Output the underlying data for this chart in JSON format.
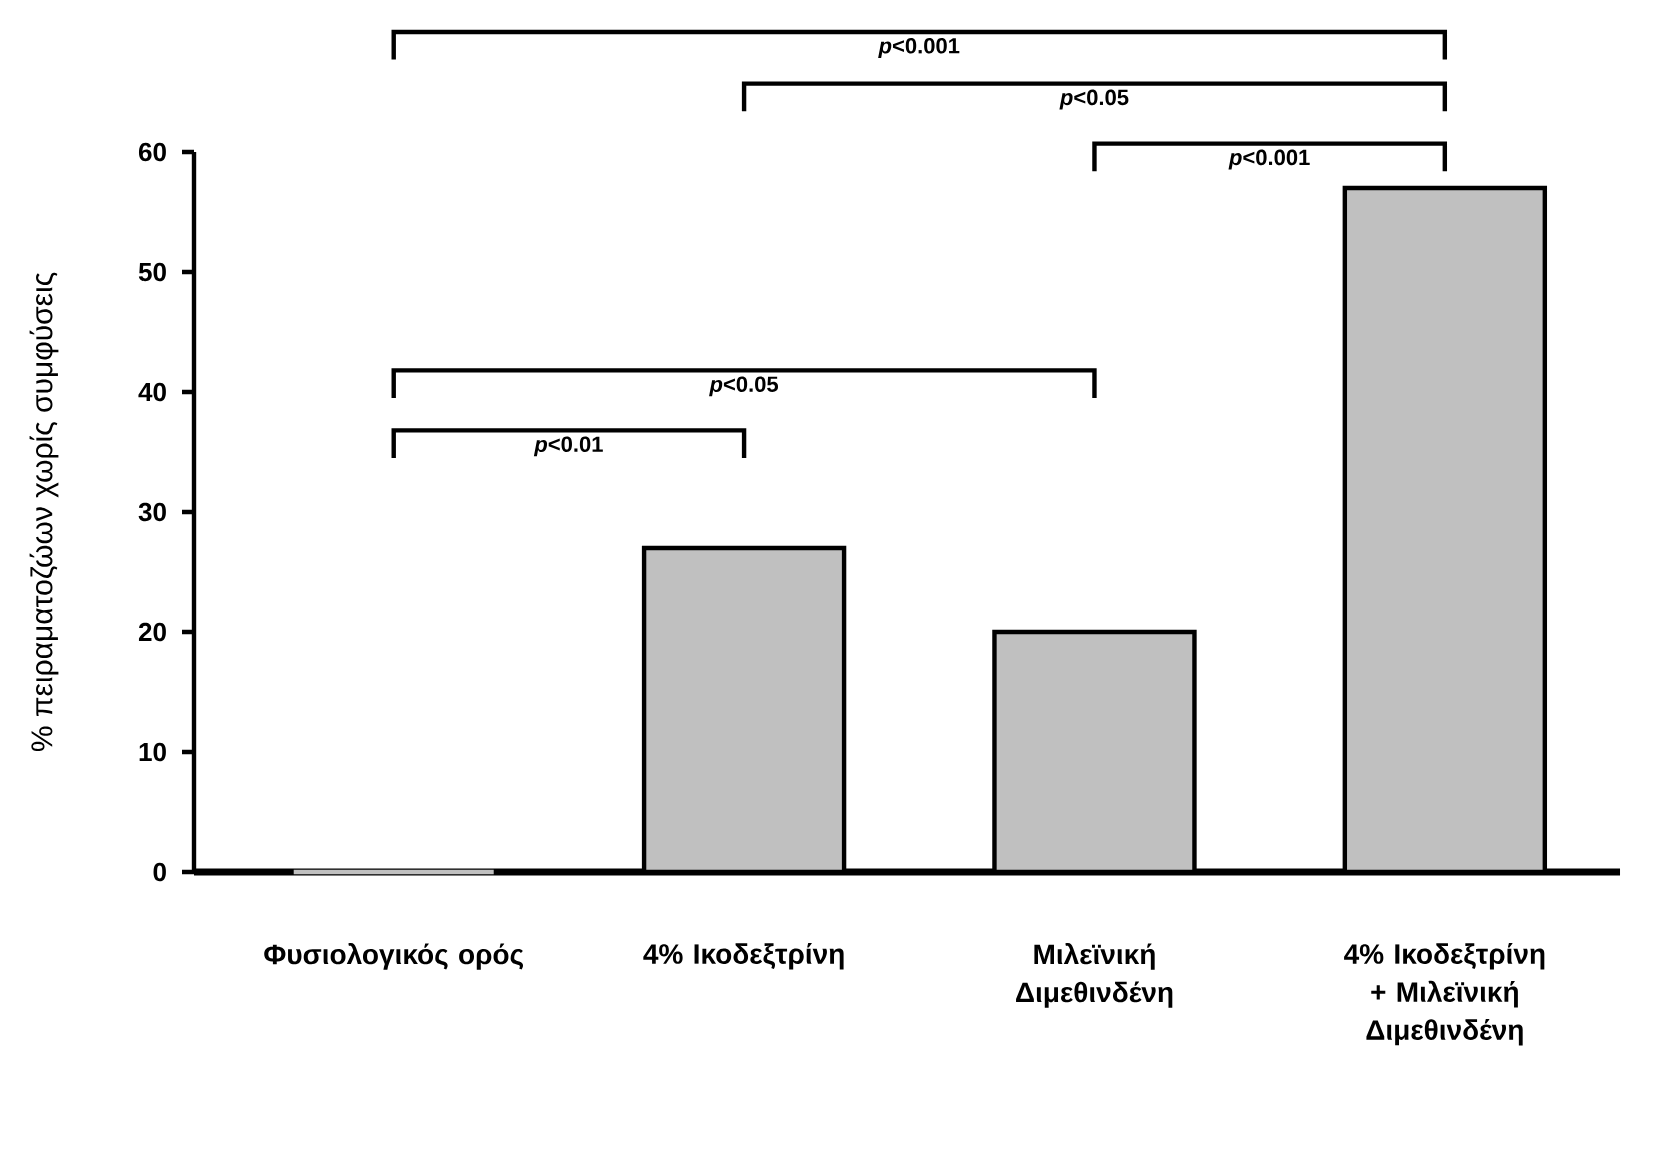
{
  "chart_data": {
    "type": "bar",
    "ylabel": "% πειραματοζώων χωρίς συμφύσεις",
    "categories": [
      "Φυσιολογικός ορός",
      "4% Ικοδεξτρίνη",
      "Μιλεϊνική Διμεθινδένη",
      "4% Ικοδεξτρίνη + Μιλεϊνική Διμεθινδένη"
    ],
    "values": [
      0,
      27,
      20,
      57
    ],
    "color": "#c0c0c0",
    "ylim": [
      0,
      60
    ],
    "yticks": [
      0,
      10,
      20,
      30,
      40,
      50,
      60
    ],
    "annotations": [
      "*p*<0.001",
      "*p*<0.05",
      "*p*<0.001",
      "*p*<0.05",
      "*p*<0.01"
    ]
  }
}
